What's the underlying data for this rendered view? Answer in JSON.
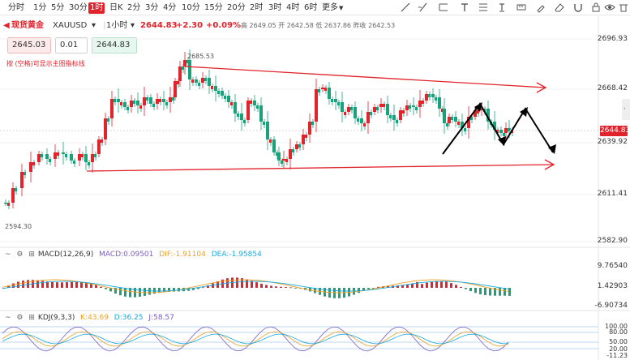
{
  "toolbar": {
    "timeframes": [
      "分时",
      "1分",
      "5分",
      "30分",
      "1时",
      "日K",
      "2分",
      "3分",
      "4分",
      "10分",
      "15分",
      "20分",
      "2时",
      "3时",
      "4时",
      "6时"
    ],
    "active_timeframe": "1时",
    "more_label": "更多",
    "tools": [
      "trend-line-icon",
      "line-icon",
      "ray-icon",
      "text-icon",
      "fibonacci-icon",
      "measure-icon",
      "eraser-icon",
      "lock-icon",
      "eye-icon",
      "settings-icon"
    ]
  },
  "header": {
    "symbol": "现货黄金",
    "code": "XAUUSD",
    "period": "1小时",
    "last_price": "2644.83",
    "change": "+2.30",
    "change_pct": "+0.09%",
    "high_label": "高",
    "high": "2649.05",
    "open_label": "开",
    "open": "2642.58",
    "low_label": "低",
    "low": "2637.86",
    "prev_close_label": "昨收",
    "prev_close": "2642.53"
  },
  "order": {
    "sell_price": "2645.03",
    "lot": "0.01",
    "buy_price": "2644.83",
    "hint": "按 (空格)可显示主图指标线"
  },
  "price_axis": {
    "ticks": [
      "2696.93",
      "2668.42",
      "2639.92",
      "2611.41",
      "2582.90"
    ],
    "current": "2644.83"
  },
  "main_chart": {
    "annot_high": "2685.53",
    "annot_low": "2594.30"
  },
  "macd": {
    "title": "MACD(12,26,9)",
    "macd_label": "MACD:0.09501",
    "dif_label": "DIF:-1.91104",
    "dea_label": "DEA:-1.95854",
    "axis": [
      "9.76540",
      "1.42903",
      "-6.90734"
    ]
  },
  "kdj": {
    "title": "KDJ(9,3,3)",
    "k_label": "K:43.69",
    "d_label": "D:36.25",
    "j_label": "J:58.57",
    "axis": [
      "100.00",
      "80.00",
      "50.00",
      "20.00",
      "-11.23"
    ]
  },
  "colors": {
    "up": "#e1232b",
    "down": "#1aa17a",
    "accent": "#e1232b",
    "dif": "#f0a020",
    "dea": "#1aa9e0",
    "macd_label": "#7a5cc7",
    "k": "#f0a020",
    "d": "#1aa9e0",
    "j": "#7a5cc7"
  }
}
